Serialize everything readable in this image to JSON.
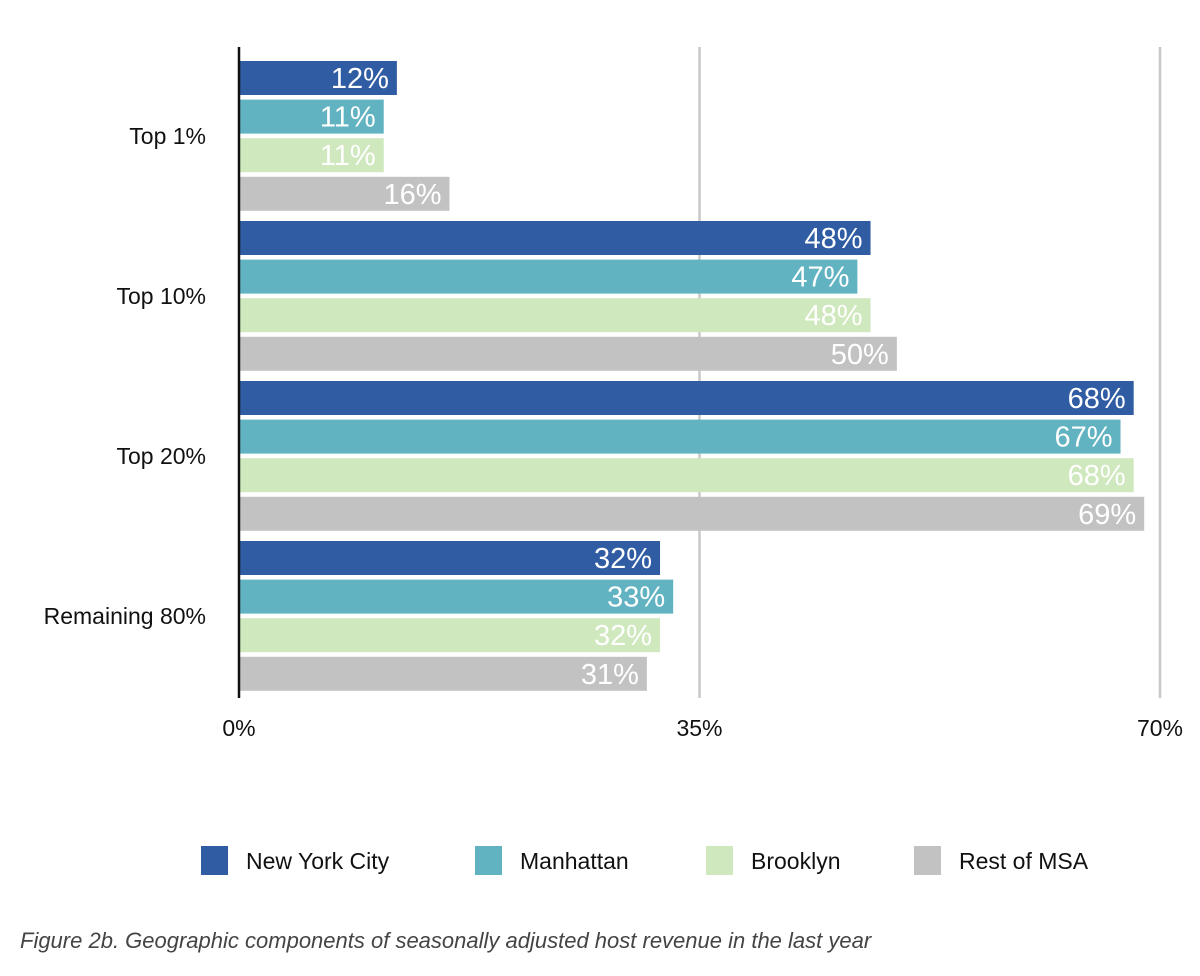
{
  "chart_data": {
    "type": "bar",
    "orientation": "horizontal",
    "categories": [
      "Top 1%",
      "Top 10%",
      "Top 20%",
      "Remaining 80%"
    ],
    "series": [
      {
        "name": "New York City",
        "color": "#2f5ca3",
        "values": [
          12,
          48,
          68,
          32
        ],
        "labels": [
          "12%",
          "48%",
          "68%",
          "32%"
        ]
      },
      {
        "name": "Manhattan",
        "color": "#62b3c2",
        "values": [
          11,
          47,
          67,
          33
        ],
        "labels": [
          "11%",
          "47%",
          "67%",
          "33%"
        ]
      },
      {
        "name": "Brooklyn",
        "color": "#cfe8bd",
        "values": [
          11,
          48,
          68,
          32
        ],
        "labels": [
          "11%",
          "48%",
          "68%",
          "32%"
        ]
      },
      {
        "name": "Rest of MSA",
        "color": "#c2c2c2",
        "values": [
          16,
          50,
          68.8,
          31
        ],
        "labels": [
          "16%",
          "50%",
          "69%",
          "31%"
        ]
      }
    ],
    "xlim": [
      0,
      70
    ],
    "x_ticks": [
      0,
      35,
      70
    ],
    "x_tick_labels": [
      "0%",
      "35%",
      "70%"
    ],
    "grid": "vertical",
    "legend_position": "bottom",
    "caption": "Figure 2b. Geographic components of seasonally adjusted host revenue in the last year"
  }
}
